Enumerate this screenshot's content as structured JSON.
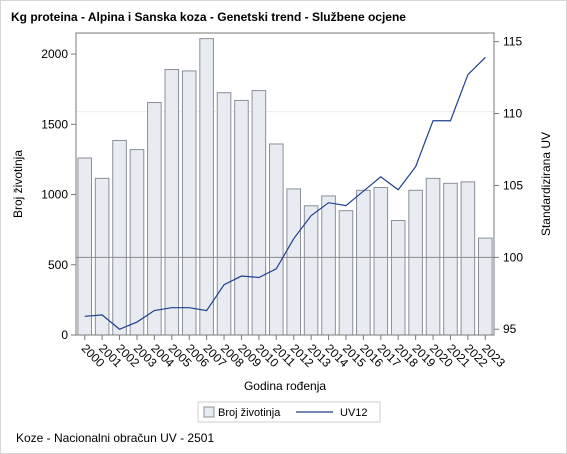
{
  "title": "Kg proteina - Alpina i Sanska koza - Genetski trend - Službene ocjene",
  "footnote": "Koze - Nacionalni obračun UV - 2501",
  "colors": {
    "bar_fill": "#e8ecf2",
    "bar_stroke": "#8a8f99",
    "line": "#1f3f8f",
    "axis": "#7a7a7a",
    "refline": "#8a8a8a"
  },
  "chart_data": {
    "type": "bar",
    "title": "Kg proteina - Alpina i Sanska koza - Genetski trend - Službene ocjene",
    "xlabel": "Godina rođenja",
    "ylabel": "Broj životinja",
    "y2label": "Standardizirana UV",
    "categories": [
      "2000",
      "2001",
      "2002",
      "2003",
      "2004",
      "2005",
      "2006",
      "2007",
      "2008",
      "2009",
      "2010",
      "2011",
      "2012",
      "2013",
      "2014",
      "2015",
      "2016",
      "2017",
      "2018",
      "2019",
      "2020",
      "2021",
      "2022",
      "2023"
    ],
    "series": [
      {
        "name": "Broj životinja",
        "type": "bar",
        "axis": "left",
        "values": [
          1260,
          1115,
          1385,
          1320,
          1655,
          1890,
          1880,
          2110,
          1725,
          1670,
          1740,
          1360,
          1040,
          920,
          990,
          885,
          1030,
          1050,
          815,
          1030,
          1115,
          1080,
          1090,
          690
        ]
      },
      {
        "name": "UV12",
        "type": "line",
        "axis": "right",
        "values": [
          95.9,
          96.0,
          95.0,
          95.5,
          96.3,
          96.5,
          96.5,
          96.3,
          98.1,
          98.7,
          98.6,
          99.2,
          101.3,
          102.9,
          103.8,
          103.6,
          104.6,
          105.6,
          104.7,
          106.3,
          109.5,
          109.5,
          112.7,
          113.9
        ]
      }
    ],
    "ylim": [
      0,
      2150
    ],
    "yticks": [
      0,
      500,
      1000,
      1500,
      2000
    ],
    "y2lim": [
      94.6,
      115.6
    ],
    "y2ticks": [
      95,
      100,
      105,
      110,
      115
    ],
    "reference_lines_right": [
      100
    ],
    "legend_position": "bottom"
  }
}
